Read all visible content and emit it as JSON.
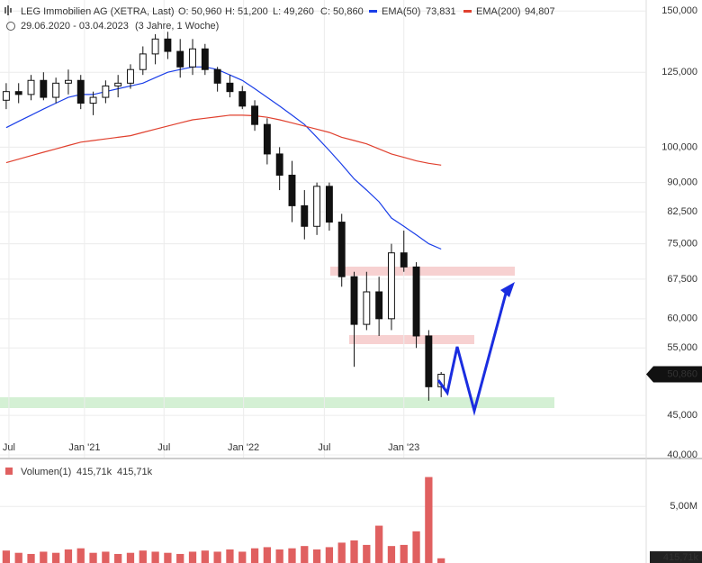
{
  "header": {
    "title": "LEG Immobilien AG (XETRA, Last)",
    "ohlc": [
      "O: 50,960",
      "H: 51,200",
      "L: 49,260",
      "C: 50,860"
    ],
    "date_range": "29.06.2020 - 03.04.2023",
    "period": "(3 Jahre, 1 Woche)"
  },
  "chart_data": [
    {
      "type": "candlestick",
      "log_scale": true,
      "grid": true,
      "color": "#111111",
      "xlim": [
        0,
        52
      ],
      "xticks": [
        {
          "value": 0.72,
          "label": "Jul"
        },
        {
          "value": 6.8,
          "label": "Jan '21"
        },
        {
          "value": 13.2,
          "label": "Jul"
        },
        {
          "value": 19.6,
          "label": "Jan '22"
        },
        {
          "value": 26.1,
          "label": "Jul"
        },
        {
          "value": 32.5,
          "label": "Jan '23"
        }
      ],
      "ylim": [
        40,
        155
      ],
      "yticks": [
        {
          "value": 40,
          "label": "40,000"
        },
        {
          "value": 45,
          "label": "45,000"
        },
        {
          "value": 55,
          "label": "55,000"
        },
        {
          "value": 60,
          "label": "60,000"
        },
        {
          "value": 67.5,
          "label": "67,500"
        },
        {
          "value": 75,
          "label": "75,000"
        },
        {
          "value": 82.5,
          "label": "82,500"
        },
        {
          "value": 90,
          "label": "90,000"
        },
        {
          "value": 100,
          "label": "100,000"
        },
        {
          "value": 125,
          "label": "125,000"
        },
        {
          "value": 150,
          "label": "150,000"
        }
      ],
      "open": [
        115,
        118,
        117,
        122,
        116,
        121,
        122,
        114,
        116,
        120,
        121,
        126,
        132,
        138,
        133,
        127,
        134,
        126,
        121,
        118,
        113,
        107,
        98,
        92,
        84,
        79,
        89,
        80,
        68,
        59,
        65,
        60,
        73,
        70,
        57,
        49
      ],
      "high": [
        121,
        121,
        124,
        125,
        123,
        126,
        124,
        118,
        122,
        124,
        128,
        135,
        140,
        141,
        138,
        138,
        136,
        127,
        124,
        120,
        115,
        109,
        100,
        96,
        88,
        90,
        90,
        82,
        69,
        69,
        68,
        75,
        78,
        71,
        58,
        51.2
      ],
      "low": [
        112,
        114,
        115,
        115,
        114,
        117,
        112,
        110,
        114,
        116,
        119,
        124,
        128,
        130,
        123,
        124,
        124,
        118,
        116,
        112,
        105,
        95,
        88,
        80,
        76,
        77,
        78,
        66,
        52,
        58,
        57,
        58,
        69,
        55,
        47,
        47.5
      ],
      "close": [
        118,
        117,
        122,
        116,
        121,
        122,
        114,
        116,
        120,
        121,
        126,
        132,
        138,
        133,
        127,
        134,
        126,
        121,
        118,
        113,
        107,
        98,
        92,
        84,
        79,
        89,
        80,
        68,
        59,
        65,
        60,
        73,
        70,
        57,
        49,
        50.86
      ],
      "last_price_label": "50,860",
      "series": [
        {
          "name": "EMA(50)",
          "last_label": "73,831",
          "color": "#1a3ee8",
          "values": [
            106,
            108,
            110,
            112,
            114,
            116,
            117,
            117,
            118,
            119,
            120,
            121,
            123,
            125,
            126,
            127,
            127,
            126,
            124,
            122,
            119,
            116,
            113,
            110,
            107,
            103,
            99,
            95,
            91,
            88,
            85,
            81,
            79,
            77,
            75,
            73.831
          ]
        },
        {
          "name": "EMA(200)",
          "last_label": "94,807",
          "color": "#e0402e",
          "values": [
            95.5,
            96.5,
            97.5,
            98.5,
            99.5,
            100.5,
            101.5,
            102,
            102.5,
            103,
            103.5,
            104.5,
            105.5,
            106.5,
            107.5,
            108.5,
            109,
            109.5,
            110,
            110,
            109.8,
            109.3,
            108.5,
            107.5,
            106.5,
            105.5,
            104.5,
            103,
            102,
            101,
            99.5,
            98,
            97,
            96,
            95.3,
            94.807
          ]
        }
      ]
    },
    {
      "type": "bar",
      "title": "Volumen(1)",
      "legend_values": [
        "415,71k",
        "415,71k"
      ],
      "color": "#e06060",
      "xlim": [
        0,
        52
      ],
      "ylim": [
        0,
        9000000
      ],
      "yticks": [
        {
          "value": 5000000,
          "label": "5,00M"
        }
      ],
      "values": [
        1100000,
        900000,
        800000,
        1000000,
        900000,
        1200000,
        1300000,
        900000,
        1000000,
        800000,
        900000,
        1100000,
        1000000,
        900000,
        800000,
        1000000,
        1100000,
        1000000,
        1200000,
        1000000,
        1300000,
        1400000,
        1200000,
        1300000,
        1500000,
        1200000,
        1400000,
        1800000,
        2000000,
        1600000,
        3300000,
        1500000,
        1600000,
        2800000,
        7600000,
        415710
      ],
      "last_label": "415,71k"
    }
  ]
}
